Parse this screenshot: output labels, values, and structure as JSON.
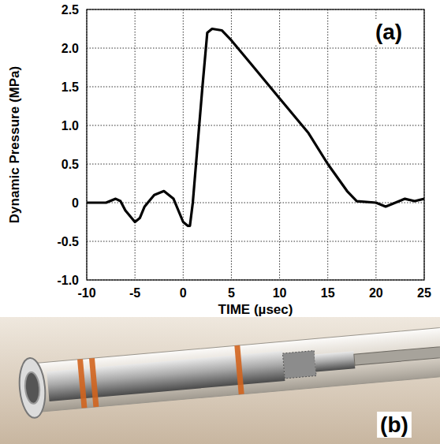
{
  "chart_data": {
    "type": "line",
    "x_label": "TIME (µsec)",
    "y_label": "Dynamic Pressure (MPa)",
    "annotations": [
      "(a)",
      "(b)"
    ],
    "color": "#000000",
    "grid": true,
    "xlim": [
      -10,
      25
    ],
    "ylim": [
      -1,
      2.5
    ],
    "xticks": [
      -10,
      -5,
      0,
      5,
      10,
      15,
      20,
      25
    ],
    "yticks": [
      {
        "value": -1,
        "label": "-1.0"
      },
      -0.5,
      0,
      0.5,
      {
        "value": 1,
        "label": "1.0"
      },
      1.5,
      {
        "value": 2,
        "label": "2.0"
      },
      2.5
    ],
    "x": [
      -10,
      -8,
      -7,
      -6.5,
      -6,
      -5,
      -4.5,
      -4,
      -3,
      -2,
      -1,
      0,
      0.5,
      0.7,
      1,
      2,
      2.5,
      3,
      4,
      5,
      7,
      10,
      13,
      15,
      17,
      18,
      20,
      21,
      23,
      24,
      25
    ],
    "values": [
      0,
      0,
      0.05,
      0.02,
      -0.1,
      -0.25,
      -0.2,
      -0.05,
      0.1,
      0.15,
      0.05,
      -0.25,
      -0.3,
      -0.3,
      0,
      1.5,
      2.2,
      2.25,
      2.23,
      2.1,
      1.8,
      1.35,
      0.9,
      0.5,
      0.15,
      0.02,
      0,
      -0.05,
      0.05,
      0.02,
      0.05
    ]
  }
}
